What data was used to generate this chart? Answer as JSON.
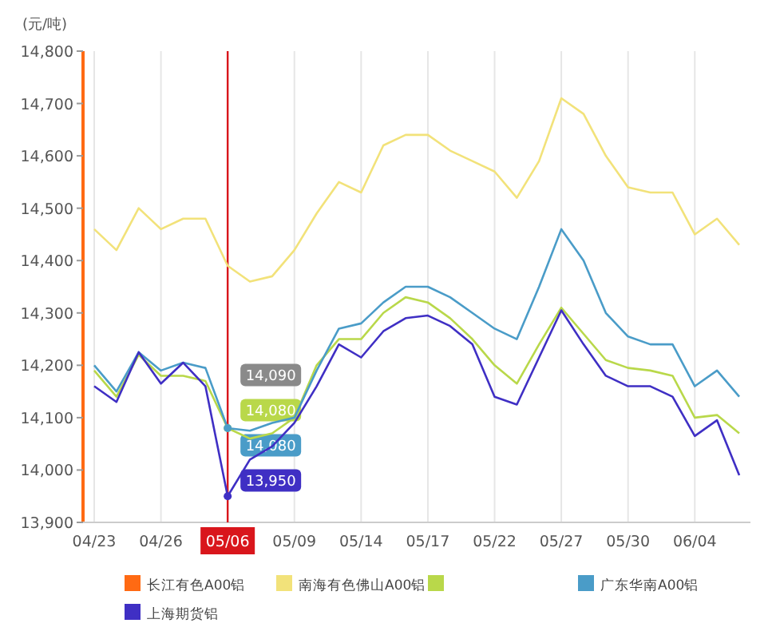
{
  "chart_data": {
    "type": "line",
    "ylabel": "(元/吨)",
    "categories": [
      "04/23",
      null,
      null,
      "04/26",
      null,
      null,
      "05/06",
      null,
      null,
      "05/09",
      null,
      null,
      "05/14",
      null,
      null,
      "05/17",
      null,
      null,
      "05/22",
      null,
      null,
      "05/27",
      null,
      null,
      "05/30",
      null,
      null,
      "06/04",
      null,
      null
    ],
    "ylim": [
      13900,
      14800
    ],
    "yticks": [
      {
        "value": 13900,
        "label": "13,900"
      },
      {
        "value": 14000,
        "label": "14,000"
      },
      {
        "value": 14100,
        "label": "14,100"
      },
      {
        "value": 14200,
        "label": "14,200"
      },
      {
        "value": 14300,
        "label": "14,300"
      },
      {
        "value": 14400,
        "label": "14,400"
      },
      {
        "value": 14500,
        "label": "14,500"
      },
      {
        "value": 14600,
        "label": "14,600"
      },
      {
        "value": 14700,
        "label": "14,700"
      },
      {
        "value": 14800,
        "label": "14,800"
      }
    ],
    "grid": "x",
    "legend": "bottom",
    "marker": "none",
    "ref_lines": [
      {
        "axis": "x",
        "value": "05/06",
        "color": "#d9161c"
      }
    ],
    "annotations": [
      {
        "text": "14,090",
        "x": "05/06",
        "y": 14090
      }
    ],
    "series": [
      {
        "name": "长江有色A00铝",
        "color": "#ff6a13",
        "values": [
          null,
          null,
          null,
          null,
          null,
          null,
          null,
          null,
          null,
          null,
          null,
          null,
          null,
          null,
          null,
          null,
          null,
          null,
          null,
          null,
          null,
          null,
          null,
          null,
          null,
          null,
          null,
          null,
          null,
          null
        ]
      },
      {
        "name": "南海有色佛山A00铝",
        "color": "#f2e27a",
        "values": [
          14460,
          14420,
          14500,
          14460,
          14480,
          14480,
          14390,
          14360,
          14370,
          14420,
          14490,
          14550,
          14530,
          14620,
          14640,
          14640,
          14610,
          14590,
          14570,
          14520,
          14590,
          14710,
          14680,
          14600,
          14540,
          14530,
          14530,
          14450,
          14480,
          14430
        ]
      },
      {
        "color": "#b9d84a",
        "values": [
          14190,
          14140,
          14220,
          14180,
          14180,
          14170,
          14080,
          14060,
          14070,
          14100,
          14200,
          14250,
          14250,
          14300,
          14330,
          14320,
          14290,
          14250,
          14200,
          14165,
          14240,
          14310,
          14260,
          14210,
          14195,
          14190,
          14180,
          14100,
          14105,
          14070
        ],
        "value_labels": [
          null,
          null,
          null,
          null,
          null,
          null,
          "14,080",
          null,
          null,
          null,
          null,
          null,
          null,
          null,
          null,
          null,
          null,
          null,
          null,
          null,
          null,
          null,
          null,
          null,
          null,
          null,
          null,
          null,
          null,
          null
        ]
      },
      {
        "name": "广东华南A00铝",
        "color": "#4a9cc8",
        "values": [
          14200,
          14150,
          14225,
          14190,
          14205,
          14195,
          14080,
          14075,
          14090,
          14100,
          14190,
          14270,
          14280,
          14320,
          14350,
          14350,
          14330,
          14300,
          14270,
          14250,
          14350,
          14460,
          14400,
          14300,
          14255,
          14240,
          14240,
          14160,
          14190,
          14140
        ],
        "value_labels": [
          null,
          null,
          null,
          null,
          null,
          null,
          "14,080",
          null,
          null,
          null,
          null,
          null,
          null,
          null,
          null,
          null,
          null,
          null,
          null,
          null,
          null,
          null,
          null,
          null,
          null,
          null,
          null,
          null,
          null,
          null
        ]
      },
      {
        "name": "上海期货铝",
        "color": "#3f2fc4",
        "values": [
          14160,
          14130,
          14225,
          14165,
          14205,
          14160,
          13950,
          14020,
          14045,
          14090,
          14160,
          14240,
          14215,
          14265,
          14290,
          14295,
          14275,
          14240,
          14140,
          14125,
          14215,
          14305,
          14240,
          14180,
          14160,
          14160,
          14140,
          14065,
          14095,
          13990
        ],
        "value_labels": [
          null,
          null,
          null,
          null,
          null,
          null,
          "13,950",
          null,
          null,
          null,
          null,
          null,
          null,
          null,
          null,
          null,
          null,
          null,
          null,
          null,
          null,
          null,
          null,
          null,
          null,
          null,
          null,
          null,
          null,
          null
        ]
      }
    ]
  }
}
